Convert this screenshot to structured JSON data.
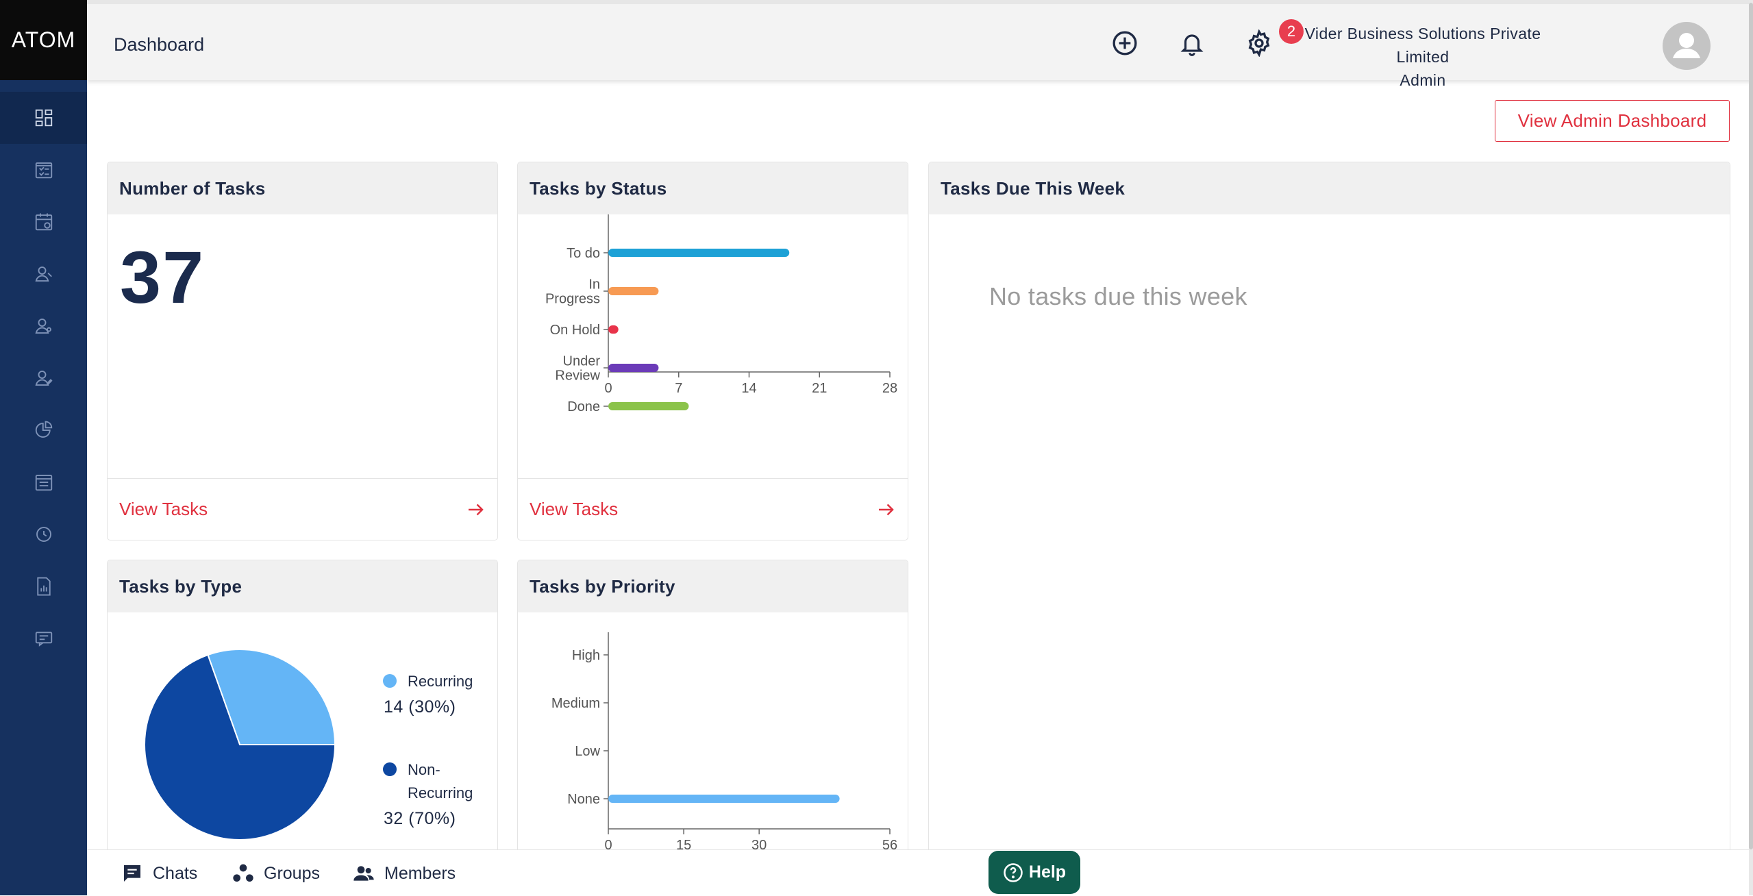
{
  "app": {
    "logo": "ATOM"
  },
  "sidebar": {
    "items": [
      {
        "icon": "dashboard-icon"
      },
      {
        "icon": "task-list-icon"
      },
      {
        "icon": "calendar-clock-icon"
      },
      {
        "icon": "user-icon"
      },
      {
        "icon": "user-settings-icon"
      },
      {
        "icon": "user-edit-icon"
      },
      {
        "icon": "pie-chart-icon"
      },
      {
        "icon": "checklist-icon"
      },
      {
        "icon": "clock-icon"
      },
      {
        "icon": "report-icon"
      },
      {
        "icon": "chat-icon"
      }
    ]
  },
  "header": {
    "title": "Dashboard",
    "notifications_count": "2",
    "org_name": "Vider Business Solutions Private Limited",
    "role": "Admin",
    "icons": [
      "add-icon",
      "bell-icon",
      "gear-icon",
      "avatar"
    ]
  },
  "admin_button": "View Admin Dashboard",
  "cards": {
    "number_of_tasks": {
      "title": "Number of Tasks",
      "value": "37",
      "footer": "View Tasks"
    },
    "tasks_by_status": {
      "title": "Tasks by Status",
      "footer": "View Tasks"
    },
    "tasks_due": {
      "title": "Tasks Due This Week",
      "empty": "No tasks due this week"
    },
    "tasks_by_type": {
      "title": "Tasks by Type"
    },
    "tasks_by_priority": {
      "title": "Tasks by Priority"
    }
  },
  "chart_data": [
    {
      "type": "bar",
      "orientation": "horizontal",
      "categories": [
        [
          "To do"
        ],
        [
          "In",
          "Progress"
        ],
        [
          "On Hold"
        ],
        [
          "Under",
          "Review"
        ],
        [
          "Done"
        ]
      ],
      "values": [
        18,
        5,
        1,
        5,
        8
      ],
      "colors": [
        "#1da1d6",
        "#f79a53",
        "#e8334a",
        "#6b3bb8",
        "#8bc34a"
      ],
      "xticks": [
        "0",
        "7",
        "14",
        "21",
        "28"
      ],
      "xlim": [
        0,
        28
      ]
    },
    {
      "type": "pie",
      "labels": [
        "Recurring",
        "Non-Recurring"
      ],
      "legend_lines": [
        [
          "Recurring"
        ],
        [
          "Non-",
          "Recurring"
        ]
      ],
      "values": [
        14,
        32
      ],
      "display": [
        "14 (30%)",
        "32 (70%)"
      ],
      "colors": [
        "#64b5f6",
        "#0d47a1"
      ]
    },
    {
      "type": "bar",
      "orientation": "horizontal",
      "categories": [
        [
          "High"
        ],
        [
          "Medium"
        ],
        [
          "Low"
        ],
        [
          "None"
        ]
      ],
      "values": [
        0,
        0,
        0,
        46
      ],
      "colors": [
        "#64b5f6",
        "#64b5f6",
        "#64b5f6",
        "#64b5f6"
      ],
      "xticks": [
        "0",
        "15",
        "30",
        "56"
      ],
      "xtick_values": [
        0,
        15,
        30,
        56
      ],
      "xlim": [
        0,
        56
      ]
    }
  ],
  "bottom_bar": {
    "items": [
      {
        "label": "Chats",
        "icon": "chat-bubble-icon"
      },
      {
        "label": "Groups",
        "icon": "groups-icon"
      },
      {
        "label": "Members",
        "icon": "members-icon"
      }
    ],
    "help": "Help"
  }
}
